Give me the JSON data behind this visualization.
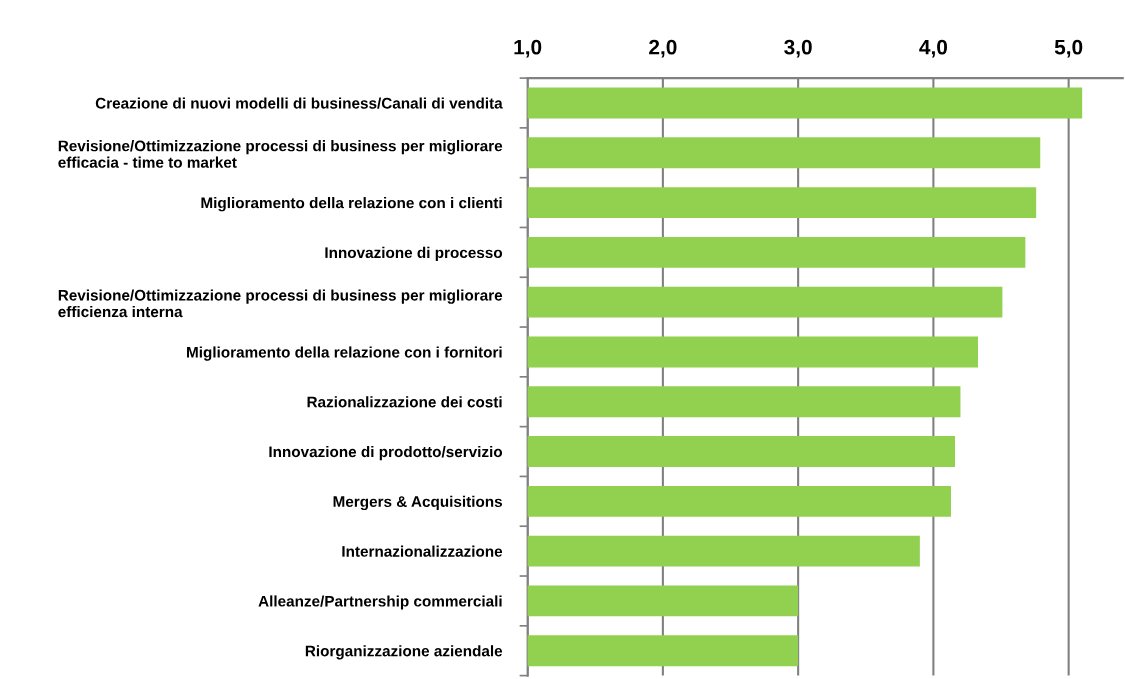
{
  "chart_data": {
    "type": "bar",
    "orientation": "horizontal",
    "categories": [
      "Creazione di nuovi modelli di business/Canali di vendita",
      "Revisione/Ottimizzazione processi di business per migliorare\nefficacia - time to market",
      "Miglioramento della relazione con i clienti",
      "Innovazione di processo",
      "Revisione/Ottimizzazione processi di business per migliorare\nefficienza interna",
      "Miglioramento della relazione con i fornitori",
      "Razionalizzazione dei costi",
      "Innovazione di prodotto/servizio",
      "Mergers & Acquisitions",
      "Internazionalizzazione",
      "Alleanze/Partnership commerciali",
      "Riorganizzazione aziendale"
    ],
    "values": [
      5.1,
      4.79,
      4.76,
      4.68,
      4.51,
      4.33,
      4.2,
      4.16,
      4.13,
      3.9,
      3.0,
      3.0
    ],
    "color": "#92d050",
    "xlim": [
      1,
      5.4
    ],
    "xticks": [
      {
        "value": 1,
        "label": "1,0"
      },
      {
        "value": 2,
        "label": "2,0"
      },
      {
        "value": 3,
        "label": "3,0"
      },
      {
        "value": 4,
        "label": "4,0"
      },
      {
        "value": 5,
        "label": "5,0"
      }
    ],
    "grid": "x"
  }
}
